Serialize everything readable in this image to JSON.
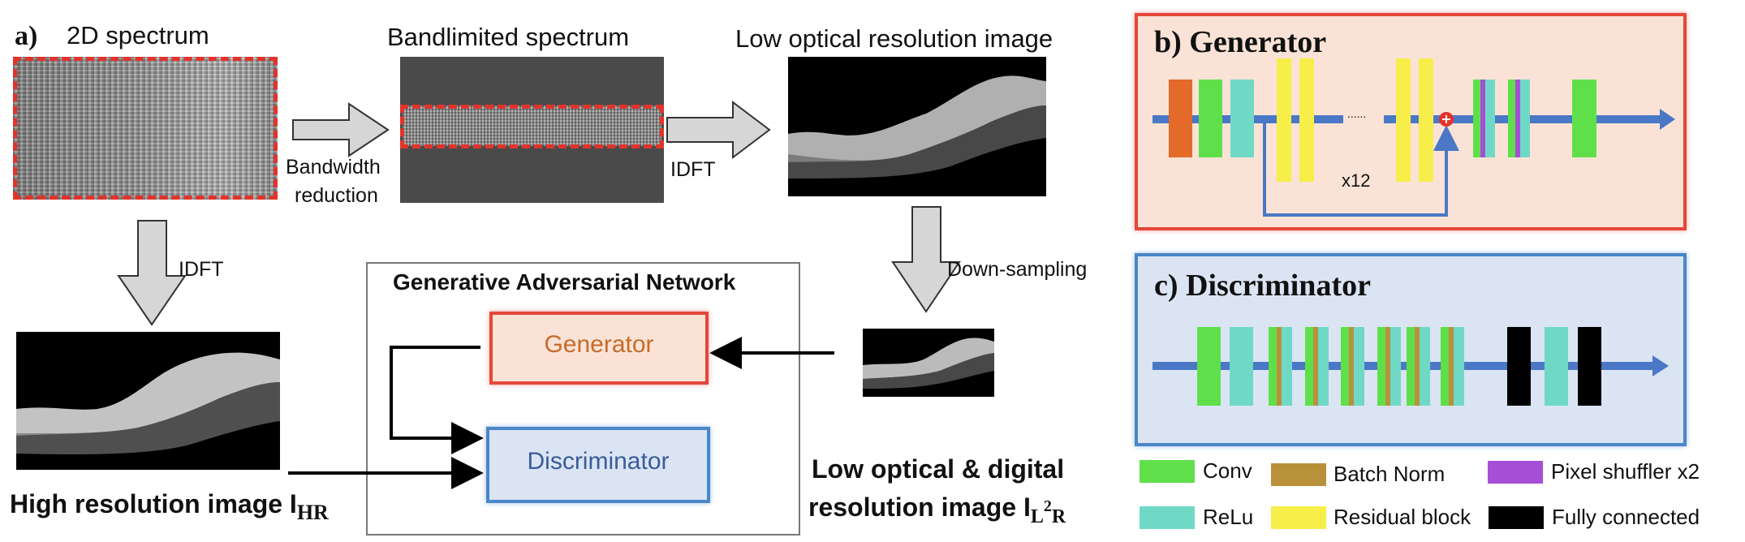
{
  "panel_a": {
    "label": "a)",
    "spectrum_title": "2D spectrum",
    "bandlimited_title": "Bandlimited spectrum",
    "low_opt_title": "Low optical resolution image",
    "bandwidth_reduction": [
      "Bandwidth",
      "reduction"
    ],
    "idft_right": "IDFT",
    "idft_down": "IDFT",
    "down_sampling": "Down-sampling",
    "gan_title": "Generative Adversarial Network",
    "generator_label": "Generator",
    "discriminator_label": "Discriminator",
    "high_res_caption": "High resolution image I",
    "high_res_sub": "HR",
    "low_digital_caption_1": "Low optical & digital",
    "low_digital_caption_2": "resolution image I",
    "low_digital_sub_1": "L",
    "low_digital_sup": "2",
    "low_digital_sub_2": "R"
  },
  "panel_b": {
    "label": "b) Generator",
    "repeat_label": "x12",
    "ellipsis": "......"
  },
  "panel_c": {
    "label": "c) Discriminator"
  },
  "legend": [
    {
      "label": "Conv",
      "color": "#5fe04a"
    },
    {
      "label": "Batch Norm",
      "color": "#b8913a"
    },
    {
      "label": "Pixel shuffler x2",
      "color": "#a64fd6"
    },
    {
      "label": "ReLu",
      "color": "#6fd9c6"
    },
    {
      "label": "Residual block",
      "color": "#f7ee4a"
    },
    {
      "label": "Fully connected",
      "color": "#000000"
    }
  ],
  "colors": {
    "red_dash": "#e2332b",
    "gen_fill": "#fae3d6",
    "gen_border": "#e3473a",
    "gen_text": "#c86a28",
    "disc_fill": "#dbe4f3",
    "disc_border": "#4a86c8",
    "disc_text": "#3a5c9a",
    "flow_arrow": "#4a78c6",
    "orange_block": "#e46a2a",
    "spectrum_bg": "#4a4a4a"
  }
}
